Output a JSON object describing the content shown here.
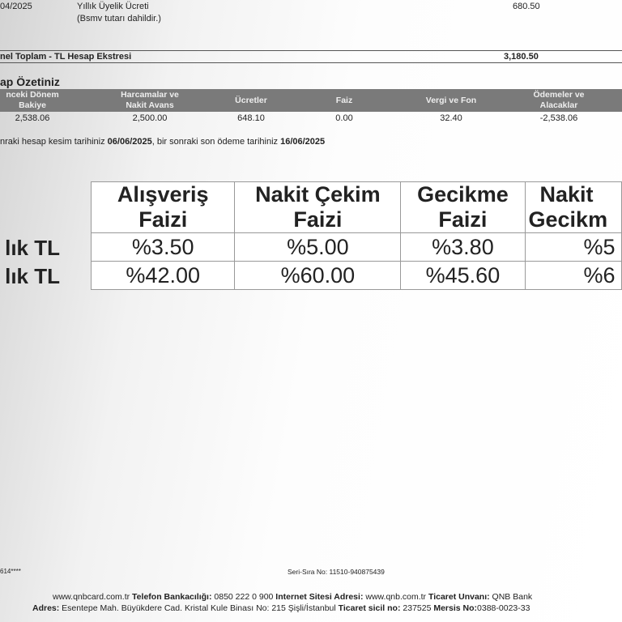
{
  "transaction": {
    "date": "04/2025",
    "description": "Yıllık Üyelik Ücreti",
    "note": "(Bsmv tutarı dahildir.)",
    "amount": "680.50"
  },
  "grand_total": {
    "label": "nel Toplam - TL Hesap Ekstresi",
    "amount": "3,180.50"
  },
  "summary": {
    "title": "ap Özetiniz",
    "headers": [
      "nceki Dönem\nBakiye",
      "Harcamalar ve\nNakit Avans",
      "Ücretler",
      "Faiz",
      "Vergi ve Fon",
      "Ödemeler ve\nAlacaklar"
    ],
    "values": [
      "2,538.06",
      "2,500.00",
      "648.10",
      "0.00",
      "32.40",
      "-2,538.06"
    ]
  },
  "dates": {
    "prefix": "nraki hesap kesim tarihiniz ",
    "cut_date": "06/06/2025",
    "middle": ", bir sonraki son ödeme tarihiniz ",
    "due_date": "16/06/2025"
  },
  "rates": {
    "headers": [
      [
        "Alışveriş",
        "Faizi"
      ],
      [
        "Nakit Çekim",
        "Faizi"
      ],
      [
        "Gecikme",
        "Faizi"
      ],
      [
        "Nakit",
        "Gecikm"
      ]
    ],
    "rows": [
      {
        "label": "lık TL",
        "values": [
          "%3.50",
          "%5.00",
          "%3.80",
          "%5"
        ]
      },
      {
        "label": "lık TL",
        "values": [
          "%42.00",
          "%60.00",
          "%45.60",
          "%6"
        ]
      }
    ]
  },
  "footer": {
    "card": "614****",
    "serial": "Seri-Sıra No: 11510-940875439",
    "line1": [
      [
        "",
        "www.qnbcard.com.tr "
      ],
      [
        "b",
        "Telefon Bankacılığı:"
      ],
      [
        "",
        " 0850 222 0 900 "
      ],
      [
        "b",
        "Internet Sitesi Adresi:"
      ],
      [
        "",
        " www.qnb.com.tr "
      ],
      [
        "b",
        "Ticaret Unvanı:"
      ],
      [
        "",
        " QNB Bank"
      ]
    ],
    "line2": [
      [
        "b",
        "Adres:"
      ],
      [
        "",
        " Esentepe Mah. Büyükdere Cad. Kristal Kule Binası No: 215 Şişli/İstanbul "
      ],
      [
        "b",
        "Ticaret sicil no:"
      ],
      [
        "",
        " 237525 "
      ],
      [
        "b",
        "Mersis No:"
      ],
      [
        "",
        "0388-0023-33"
      ]
    ]
  }
}
